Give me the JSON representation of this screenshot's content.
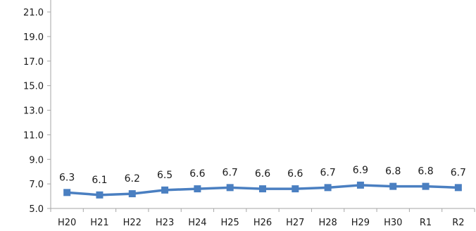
{
  "chart_data": {
    "type": "line",
    "categories": [
      "H20",
      "H21",
      "H22",
      "H23",
      "H24",
      "H25",
      "H26",
      "H27",
      "H28",
      "H29",
      "H30",
      "R1",
      "R2"
    ],
    "series": [
      {
        "values": [
          6.3,
          6.1,
          6.2,
          6.5,
          6.6,
          6.7,
          6.6,
          6.6,
          6.7,
          6.9,
          6.8,
          6.8,
          6.7
        ]
      }
    ],
    "data_labels": [
      "6.3",
      "6.1",
      "6.2",
      "6.5",
      "6.6",
      "6.7",
      "6.6",
      "6.6",
      "6.7",
      "6.9",
      "6.8",
      "6.8",
      "6.7"
    ],
    "y_ticks": [
      "5.0",
      "7.0",
      "9.0",
      "11.0",
      "13.0",
      "15.0",
      "17.0",
      "19.0",
      "21.0"
    ],
    "ylim": [
      5,
      21
    ],
    "grid": false,
    "legend": "none",
    "title": "",
    "xlabel": "",
    "ylabel": "",
    "colors": {
      "line": "#4a7fc1",
      "marker": "#4a7fc1",
      "axis": "#a6a6a6",
      "text": "#1a1a1a"
    }
  }
}
